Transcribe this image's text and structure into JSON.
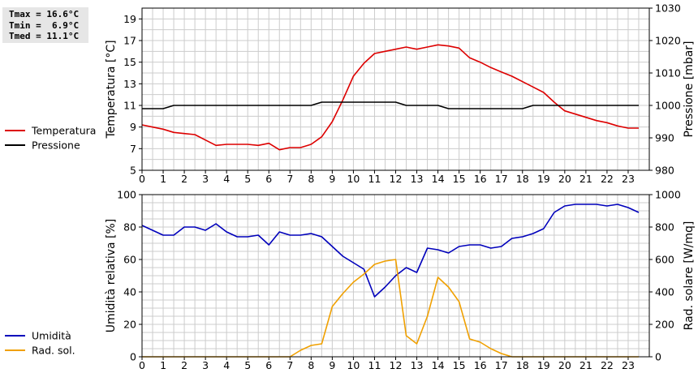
{
  "stats": {
    "tmax": "Tmax = 16.6°C",
    "tmin": "Tmin =  6.9°C",
    "tmed": "Tmed = 11.1°C"
  },
  "colors": {
    "temperature": "#dd0000",
    "pressure": "#000000",
    "humidity": "#0000bb",
    "solar": "#f0a000",
    "grid": "#cccccc"
  },
  "chart_data": [
    {
      "type": "line",
      "x_ticks": [
        "0",
        "1",
        "2",
        "3",
        "4",
        "5",
        "6",
        "7",
        "8",
        "9",
        "10",
        "11",
        "12",
        "13",
        "14",
        "15",
        "16",
        "17",
        "18",
        "19",
        "20",
        "21",
        "22",
        "23"
      ],
      "xlim": [
        0,
        24
      ],
      "y_left": {
        "label": "Temperatura [°C]",
        "lim": [
          5,
          20
        ],
        "ticks": [
          "5",
          "7",
          "9",
          "11",
          "13",
          "15",
          "17",
          "19"
        ]
      },
      "y_right": {
        "label": "Pressione [mbar]",
        "lim": [
          980,
          1030
        ],
        "ticks": [
          "980",
          "990",
          "1000",
          "1010",
          "1020",
          "1030"
        ]
      },
      "grid": true,
      "series": [
        {
          "name": "Temperatura",
          "axis": "left",
          "x": [
            0,
            0.5,
            1,
            1.5,
            2,
            2.5,
            3,
            3.5,
            4,
            4.5,
            5,
            5.5,
            6,
            6.5,
            7,
            7.5,
            8,
            8.5,
            9,
            9.5,
            10,
            10.5,
            11,
            11.5,
            12,
            12.5,
            13,
            13.5,
            14,
            14.5,
            15,
            15.5,
            16,
            16.5,
            17,
            17.5,
            18,
            18.5,
            19,
            19.5,
            20,
            20.5,
            21,
            21.5,
            22,
            22.5,
            23,
            23.5
          ],
          "y": [
            9.2,
            9.0,
            8.8,
            8.5,
            8.4,
            8.3,
            7.8,
            7.3,
            7.4,
            7.4,
            7.4,
            7.3,
            7.5,
            6.9,
            7.1,
            7.1,
            7.4,
            8.1,
            9.5,
            11.5,
            13.7,
            14.9,
            15.8,
            16.0,
            16.2,
            16.4,
            16.2,
            16.4,
            16.6,
            16.5,
            16.3,
            15.4,
            15.0,
            14.5,
            14.1,
            13.7,
            13.2,
            12.7,
            12.2,
            11.3,
            10.5,
            10.2,
            9.9,
            9.6,
            9.4,
            9.1,
            8.9,
            8.9
          ]
        },
        {
          "name": "Pressione",
          "axis": "right",
          "x": [
            0,
            1,
            1.5,
            8,
            8.5,
            12,
            12.5,
            14,
            14.5,
            18,
            18.5,
            23.5
          ],
          "y": [
            999,
            999,
            1000,
            1000,
            1001,
            1001,
            1000,
            1000,
            999,
            999,
            1000,
            1000
          ]
        }
      ]
    },
    {
      "type": "line",
      "x_ticks": [
        "0",
        "1",
        "2",
        "3",
        "4",
        "5",
        "6",
        "7",
        "8",
        "9",
        "10",
        "11",
        "12",
        "13",
        "14",
        "15",
        "16",
        "17",
        "18",
        "19",
        "20",
        "21",
        "22",
        "23"
      ],
      "xlim": [
        0,
        24
      ],
      "y_left": {
        "label": "Umidità relativa [%]",
        "lim": [
          0,
          100
        ],
        "ticks": [
          "0",
          "20",
          "40",
          "60",
          "80",
          "100"
        ]
      },
      "y_right": {
        "label": "Rad. solare [W/mq]",
        "lim": [
          0,
          1000
        ],
        "ticks": [
          "0",
          "200",
          "400",
          "600",
          "800",
          "1000"
        ]
      },
      "grid": true,
      "series": [
        {
          "name": "Umidità",
          "axis": "left",
          "x": [
            0,
            0.5,
            1,
            1.5,
            2,
            2.5,
            3,
            3.5,
            4,
            4.5,
            5,
            5.5,
            6,
            6.5,
            7,
            7.5,
            8,
            8.5,
            9,
            9.5,
            10,
            10.5,
            11,
            11.5,
            12,
            12.5,
            13,
            13.5,
            14,
            14.5,
            15,
            15.5,
            16,
            16.5,
            17,
            17.5,
            18,
            18.5,
            19,
            19.5,
            20,
            20.5,
            21,
            21.5,
            22,
            22.5,
            23,
            23.5
          ],
          "y": [
            81,
            78,
            75,
            75,
            80,
            80,
            78,
            82,
            77,
            74,
            74,
            75,
            69,
            77,
            75,
            75,
            76,
            74,
            68,
            62,
            58,
            54,
            37,
            43,
            50,
            55,
            52,
            67,
            66,
            64,
            68,
            69,
            69,
            67,
            68,
            73,
            74,
            76,
            79,
            89,
            93,
            94,
            94,
            94,
            93,
            94,
            92,
            89
          ]
        },
        {
          "name": "Rad. sol.",
          "axis": "right",
          "x": [
            0,
            7,
            7.5,
            8,
            8.5,
            9,
            9.5,
            10,
            10.5,
            11,
            11.5,
            12,
            12.5,
            13,
            13.5,
            14,
            14.5,
            15,
            15.5,
            16,
            16.5,
            17,
            17.5,
            23.5
          ],
          "y": [
            0,
            0,
            40,
            70,
            80,
            310,
            390,
            460,
            510,
            570,
            590,
            600,
            130,
            80,
            250,
            490,
            430,
            340,
            110,
            90,
            50,
            20,
            0,
            0
          ]
        }
      ]
    }
  ]
}
